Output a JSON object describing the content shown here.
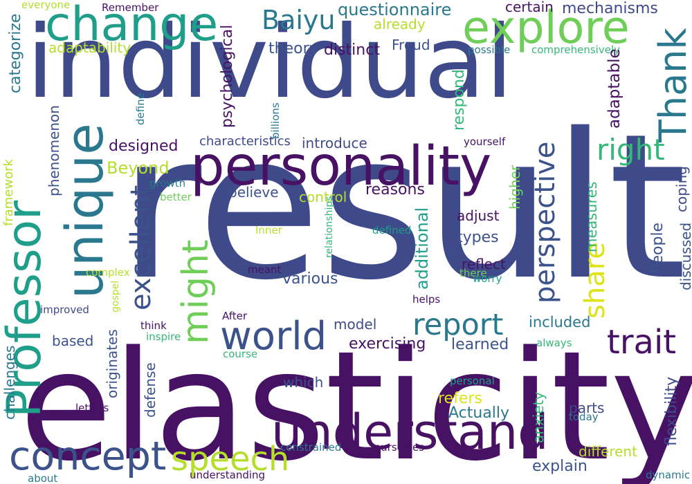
{
  "palette": {
    "dark_purple": "#471164",
    "indigo": "#3e4a89",
    "blue": "#3b528b",
    "teal": "#2a788e",
    "sea": "#1f9e89",
    "green": "#35b779",
    "lime": "#6ece58",
    "yellow_green": "#b5de2b",
    "yellow": "#dde318"
  },
  "words": [
    {
      "text": "individual",
      "color": "#3e4a89"
    },
    {
      "text": "result",
      "color": "#3e4a89"
    },
    {
      "text": "elasticity",
      "color": "#471164"
    },
    {
      "text": "personality",
      "color": "#471164"
    },
    {
      "text": "unique",
      "color": "#2a788e"
    },
    {
      "text": "change",
      "color": "#1f9e89"
    },
    {
      "text": "explore",
      "color": "#6ece58"
    },
    {
      "text": "Professor",
      "color": "#1f9e89"
    },
    {
      "text": "understand",
      "color": "#471164"
    },
    {
      "text": "concept",
      "color": "#3b528b"
    },
    {
      "text": "speech",
      "color": "#b5de2b"
    },
    {
      "text": "world",
      "color": "#3b528b"
    },
    {
      "text": "trait",
      "color": "#471164"
    },
    {
      "text": "report",
      "color": "#2a788e"
    },
    {
      "text": "Thank",
      "color": "#2a788e"
    },
    {
      "text": "might",
      "color": "#6ece58"
    },
    {
      "text": "excellent",
      "color": "#3b528b"
    },
    {
      "text": "perspective",
      "color": "#3b528b"
    },
    {
      "text": "right",
      "color": "#35b779"
    },
    {
      "text": "share",
      "color": "#dde318"
    },
    {
      "text": "Baiyu",
      "color": "#2a788e"
    },
    {
      "text": "questionnaire",
      "color": "#2a788e"
    },
    {
      "text": "already",
      "color": "#b5de2b"
    },
    {
      "text": "adaptability",
      "color": "#b5de2b"
    },
    {
      "text": "theory",
      "color": "#3b528b"
    },
    {
      "text": "distinct",
      "color": "#471164"
    },
    {
      "text": "Freud",
      "color": "#3b528b"
    },
    {
      "text": "certain",
      "color": "#471164"
    },
    {
      "text": "mechanisms",
      "color": "#3e4a89"
    },
    {
      "text": "possible",
      "color": "#2a788e"
    },
    {
      "text": "comprehensively",
      "color": "#35b779"
    },
    {
      "text": "adaptable",
      "color": "#471164"
    },
    {
      "text": "psychological",
      "color": "#471164"
    },
    {
      "text": "categorize",
      "color": "#2a788e"
    },
    {
      "text": "everyone",
      "color": "#b5de2b"
    },
    {
      "text": "Remember",
      "color": "#471164"
    },
    {
      "text": "define",
      "color": "#2a788e"
    },
    {
      "text": "billions",
      "color": "#2a788e"
    },
    {
      "text": "respond",
      "color": "#35b779"
    },
    {
      "text": "phenomenon",
      "color": "#3b528b"
    },
    {
      "text": "designed",
      "color": "#471164"
    },
    {
      "text": "characteristics",
      "color": "#3e4a89"
    },
    {
      "text": "introduce",
      "color": "#3e4a89"
    },
    {
      "text": "yourself",
      "color": "#471164"
    },
    {
      "text": "Beyond",
      "color": "#b5de2b"
    },
    {
      "text": "framework",
      "color": "#b5de2b"
    },
    {
      "text": "growth",
      "color": "#2a788e"
    },
    {
      "text": "better",
      "color": "#6ece58"
    },
    {
      "text": "believe",
      "color": "#3b528b"
    },
    {
      "text": "control",
      "color": "#b5de2b"
    },
    {
      "text": "reasons",
      "color": "#471164"
    },
    {
      "text": "higher",
      "color": "#6ece58"
    },
    {
      "text": "coping",
      "color": "#3e4a89"
    },
    {
      "text": "adjust",
      "color": "#471164"
    },
    {
      "text": "measures",
      "color": "#35b779"
    },
    {
      "text": "types",
      "color": "#3b528b"
    },
    {
      "text": "Inner",
      "color": "#b5de2b"
    },
    {
      "text": "defined",
      "color": "#1f9e89"
    },
    {
      "text": "relationships",
      "color": "#35b779"
    },
    {
      "text": "additional",
      "color": "#1f9e89"
    },
    {
      "text": "People",
      "color": "#3b528b"
    },
    {
      "text": "discussed",
      "color": "#3b528b"
    },
    {
      "text": "reflect",
      "color": "#471164"
    },
    {
      "text": "meant",
      "color": "#471164"
    },
    {
      "text": "various",
      "color": "#3b528b"
    },
    {
      "text": "there",
      "color": "#6ece58"
    },
    {
      "text": "worry",
      "color": "#1f9e89"
    },
    {
      "text": "complex",
      "color": "#b5de2b"
    },
    {
      "text": "helps",
      "color": "#471164"
    },
    {
      "text": "improved",
      "color": "#3e4a89"
    },
    {
      "text": "gospel",
      "color": "#b5de2b"
    },
    {
      "text": "think",
      "color": "#471164"
    },
    {
      "text": "After",
      "color": "#471164"
    },
    {
      "text": "inspire",
      "color": "#35b779"
    },
    {
      "text": "model",
      "color": "#3e4a89"
    },
    {
      "text": "included",
      "color": "#2a788e"
    },
    {
      "text": "based",
      "color": "#3b528b"
    },
    {
      "text": "originates",
      "color": "#3b528b"
    },
    {
      "text": "exercising",
      "color": "#471164"
    },
    {
      "text": "learned",
      "color": "#3b528b"
    },
    {
      "text": "always",
      "color": "#35b779"
    },
    {
      "text": "course",
      "color": "#35b779"
    },
    {
      "text": "challenges",
      "color": "#2a788e"
    },
    {
      "text": "defense",
      "color": "#3b528b"
    },
    {
      "text": "which",
      "color": "#3b528b"
    },
    {
      "text": "personal",
      "color": "#1f9e89"
    },
    {
      "text": "refers",
      "color": "#dde318"
    },
    {
      "text": "Actually",
      "color": "#2a788e"
    },
    {
      "text": "letters",
      "color": "#471164"
    },
    {
      "text": "anxiety",
      "color": "#35b779"
    },
    {
      "text": "parts",
      "color": "#3e4a89"
    },
    {
      "text": "today",
      "color": "#2a788e"
    },
    {
      "text": "flexibility",
      "color": "#3e4a89"
    },
    {
      "text": "constrained",
      "color": "#2a788e"
    },
    {
      "text": "ourselves",
      "color": "#471164"
    },
    {
      "text": "explain",
      "color": "#3b528b"
    },
    {
      "text": "different",
      "color": "#b5de2b"
    },
    {
      "text": "about",
      "color": "#2a788e"
    },
    {
      "text": "understanding",
      "color": "#471164"
    },
    {
      "text": "dynamic",
      "color": "#2a788e"
    }
  ]
}
